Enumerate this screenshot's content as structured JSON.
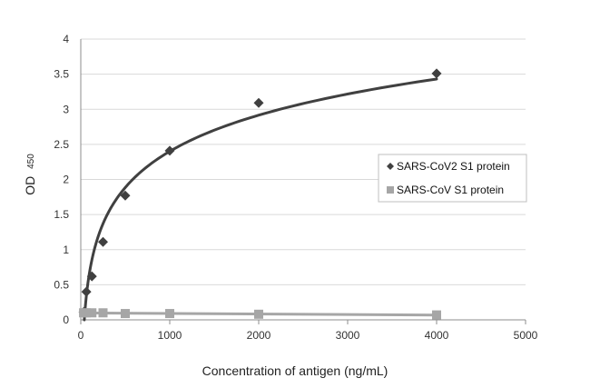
{
  "chart_data": {
    "type": "scatter",
    "title": "",
    "xlabel": "Concentration of antigen (ng/mL)",
    "ylabel": "OD",
    "ylabel_sub": "450",
    "xlim": [
      0,
      5000
    ],
    "ylim": [
      0,
      4
    ],
    "x_ticks": [
      "0",
      "1000",
      "2000",
      "3000",
      "4000",
      "5000"
    ],
    "y_ticks": [
      "0",
      "0.5",
      "1",
      "1.5",
      "2",
      "2.5",
      "3",
      "3.5",
      "4"
    ],
    "grid": "horizontal",
    "legend_position": "right",
    "series": [
      {
        "name": "SARS-CoV2 S1 protein",
        "marker": "diamond",
        "color": "#404040",
        "trendline": "log",
        "x": [
          31.25,
          62.5,
          125,
          250,
          500,
          1000,
          2000,
          4000
        ],
        "y": [
          0.11,
          0.4,
          0.62,
          1.11,
          1.77,
          2.41,
          3.09,
          3.51
        ]
      },
      {
        "name": "SARS-CoV S1 protein",
        "marker": "square",
        "color": "#a6a6a6",
        "trendline": "linear",
        "x": [
          31.25,
          62.5,
          125,
          250,
          500,
          1000,
          2000,
          4000
        ],
        "y": [
          0.1,
          0.1,
          0.1,
          0.1,
          0.09,
          0.09,
          0.08,
          0.07
        ]
      }
    ]
  }
}
